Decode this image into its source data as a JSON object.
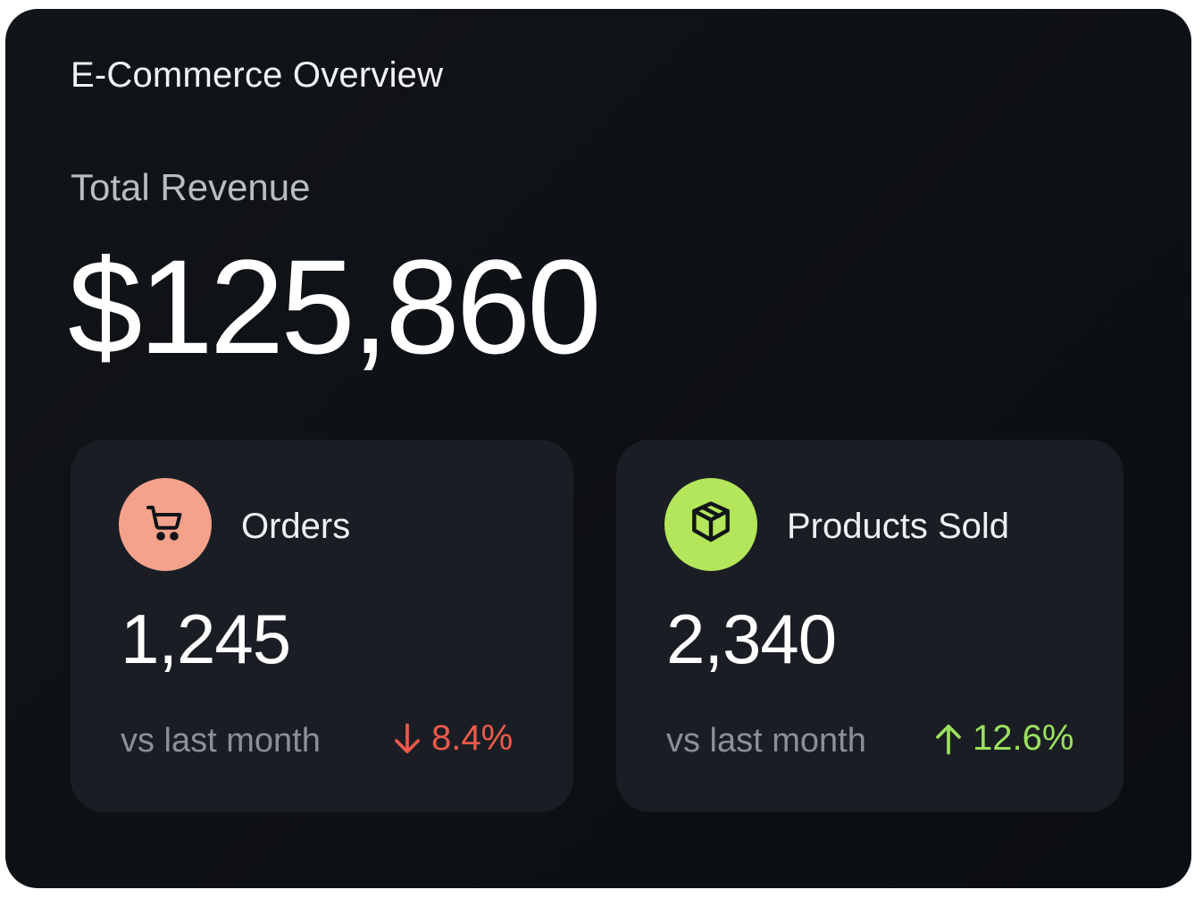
{
  "header": {
    "title": "E-Commerce Overview"
  },
  "revenue": {
    "label": "Total Revenue",
    "value": "$125,860"
  },
  "stats": [
    {
      "label": "Orders",
      "value": "1,245",
      "comparison": "vs last month",
      "delta": "8.4%",
      "direction": "down",
      "icon": "shopping-cart-icon",
      "icon_bg": "#f4a28c",
      "delta_color": "#f0594a"
    },
    {
      "label": "Products Sold",
      "value": "2,340",
      "comparison": "vs last month",
      "delta": "12.6%",
      "direction": "up",
      "icon": "package-box-icon",
      "icon_bg": "#b3e65a",
      "delta_color": "#9be15d"
    }
  ],
  "colors": {
    "card_bg": "#0f1216",
    "tile_bg": "#1a1e24",
    "text_primary": "#ffffff",
    "text_secondary": "#8b9098"
  }
}
